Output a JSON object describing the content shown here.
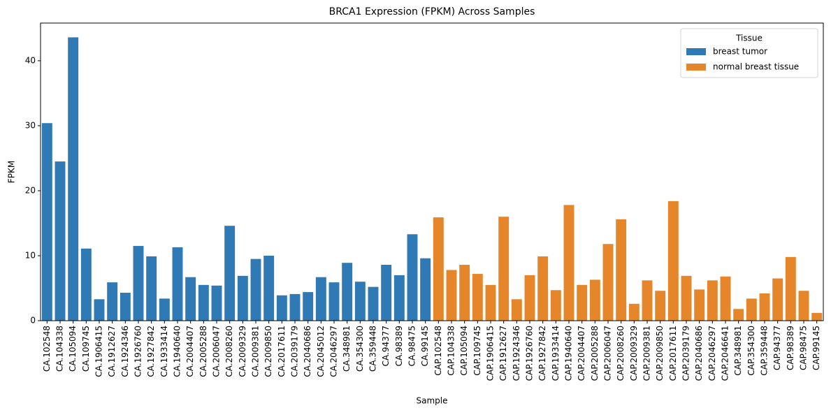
{
  "chart_data": {
    "type": "bar",
    "title": "BRCA1 Expression (FPKM) Across Samples",
    "x_label": "Sample",
    "y_label": "FPKM",
    "legend_title": "Tissue",
    "legend_position": "upper right",
    "categories": [
      "CA.102548",
      "CA.104338",
      "CA.105094",
      "CA.109745",
      "CA.1906415",
      "CA.1912627",
      "CA.1924346",
      "CA.1926760",
      "CA.1927842",
      "CA.1933414",
      "CA.1940640",
      "CA.2004407",
      "CA.2005288",
      "CA.2006047",
      "CA.2008260",
      "CA.2009329",
      "CA.2009381",
      "CA.2009850",
      "CA.2017611",
      "CA.2039179",
      "CA.2040686",
      "CA.2045012",
      "CA.2046297",
      "CA.348981",
      "CA.354300",
      "CA.359448",
      "CA.94377",
      "CA.98389",
      "CA.98475",
      "CA.99145",
      "CAP.102548",
      "CAP.104338",
      "CAP.105094",
      "CAP.109745",
      "CAP.1906415",
      "CAP.1912627",
      "CAP.1924346",
      "CAP.1926760",
      "CAP.1927842",
      "CAP.1933414",
      "CAP.1940640",
      "CAP.2004407",
      "CAP.2005288",
      "CAP.2006047",
      "CAP.2008260",
      "CAP.2009329",
      "CAP.2009381",
      "CAP.2009850",
      "CAP.2017611",
      "CAP.2039179",
      "CAP.2040686",
      "CAP.2046297",
      "CAP.2046641",
      "CAP.348981",
      "CAP.354300",
      "CAP.359448",
      "CAP.94377",
      "CAP.98389",
      "CAP.98475",
      "CAP.99145"
    ],
    "series": [
      {
        "name": "breast tumor",
        "color": "#2f7ab4",
        "values": [
          30.4,
          24.5,
          43.6,
          11.1,
          3.3,
          5.9,
          4.3,
          11.5,
          9.9,
          3.4,
          11.3,
          6.7,
          5.5,
          5.4,
          14.6,
          6.9,
          9.5,
          10.0,
          3.9,
          4.1,
          4.4,
          6.7,
          5.9,
          8.9,
          6.0,
          5.2,
          8.6,
          7.0,
          13.3,
          9.6,
          null,
          null,
          null,
          null,
          null,
          null,
          null,
          null,
          null,
          null,
          null,
          null,
          null,
          null,
          null,
          null,
          null,
          null,
          null,
          null,
          null,
          null,
          null,
          null,
          null,
          null,
          null,
          null,
          null,
          null
        ]
      },
      {
        "name": "normal breast tissue",
        "color": "#e6862a",
        "values": [
          null,
          null,
          null,
          null,
          null,
          null,
          null,
          null,
          null,
          null,
          null,
          null,
          null,
          null,
          null,
          null,
          null,
          null,
          null,
          null,
          null,
          null,
          null,
          null,
          null,
          null,
          null,
          null,
          null,
          null,
          15.9,
          7.8,
          8.6,
          7.2,
          5.5,
          16.0,
          3.3,
          7.0,
          9.9,
          4.7,
          17.8,
          5.5,
          6.3,
          11.8,
          15.6,
          2.6,
          6.2,
          4.6,
          18.4,
          6.9,
          4.8,
          6.2,
          6.8,
          1.8,
          3.4,
          4.2,
          6.5,
          9.8,
          4.6,
          1.2
        ]
      }
    ],
    "ylim": [
      0,
      45.8
    ],
    "yticks": [
      0,
      10,
      20,
      30,
      40
    ],
    "grid": false
  }
}
